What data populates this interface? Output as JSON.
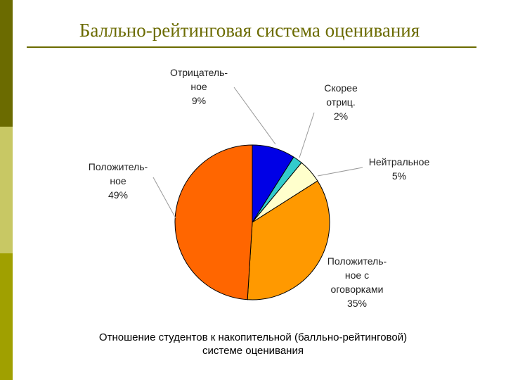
{
  "slide": {
    "title": "Балльно-рейтинговая система оценивания",
    "caption_line1": "Отношение студентов к накопительной (балльно-рейтинговой)",
    "caption_line2": "системе оценивания",
    "theme_colors": [
      "#6b6b00",
      "#c8c864",
      "#a0a000"
    ]
  },
  "chart_data": {
    "type": "pie",
    "title": "",
    "slices": [
      {
        "label_lines": [
          "Отрицатель-",
          "ное",
          "9%"
        ],
        "value": 9,
        "color": "#0000e6"
      },
      {
        "label_lines": [
          "Скорее",
          "отриц.",
          "2%"
        ],
        "value": 2,
        "color": "#33cccc"
      },
      {
        "label_lines": [
          "Нейтральное",
          "5%"
        ],
        "value": 5,
        "color": "#ffffcc"
      },
      {
        "label_lines": [
          "Положитель-",
          "ное с",
          "оговорками",
          "35%"
        ],
        "value": 35,
        "color": "#ff9900"
      },
      {
        "label_lines": [
          "Положитель-",
          "ное",
          "49%"
        ],
        "value": 49,
        "color": "#ff6600"
      }
    ]
  }
}
